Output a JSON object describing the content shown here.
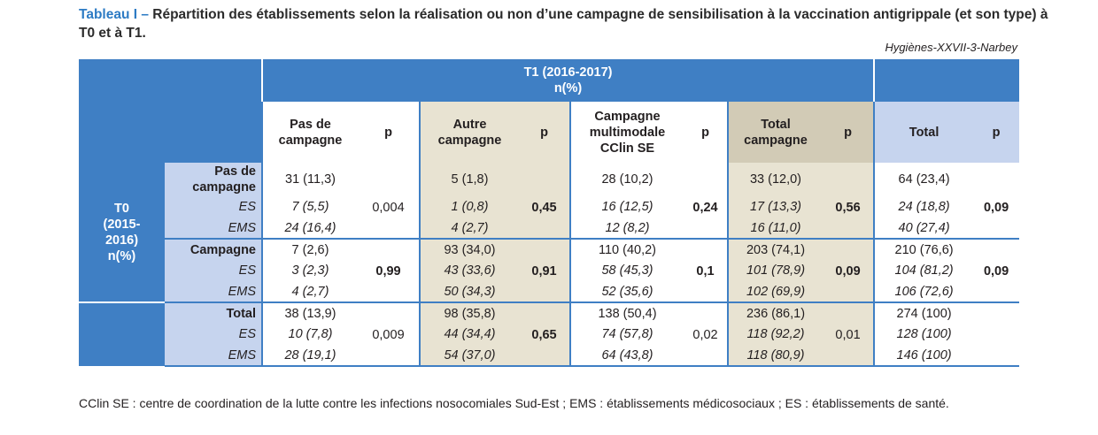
{
  "title": {
    "lead": "Tableau I –",
    "text": " Répartition des établissements selon la réalisation ou non d’une campagne de sensibilisation à la vaccination antigrippale (et son type) à T0 et à T1."
  },
  "source": "Hygiènes-XXVII-3-Narbey",
  "header": {
    "t1_line1": "T1 (2016-2017)",
    "t1_line2": "n(%)",
    "t0_lines": [
      "T0",
      "(2015-",
      "2016)",
      "n(%)"
    ],
    "columns": [
      {
        "lines": [
          "Pas de",
          "campagne"
        ]
      },
      {
        "lines": [
          "p"
        ]
      },
      {
        "lines": [
          "Autre",
          "campagne"
        ]
      },
      {
        "lines": [
          "p"
        ]
      },
      {
        "lines": [
          "Campagne",
          "multimodale",
          "CClin SE"
        ]
      },
      {
        "lines": [
          "p"
        ]
      },
      {
        "lines": [
          "Total",
          "campagne"
        ]
      },
      {
        "lines": [
          "p"
        ]
      },
      {
        "lines": [
          "Total"
        ]
      },
      {
        "lines": [
          "p"
        ]
      }
    ]
  },
  "groups": [
    {
      "label_lines": [
        "Pas de",
        "campagne"
      ],
      "es_label": "ES",
      "ems_label": "EMS",
      "main": [
        "31 (11,3)",
        "5 (1,8)",
        "28 (10,2)",
        "33 (12,0)",
        "64 (23,4)"
      ],
      "es": [
        "7 (5,5)",
        "1 (0,8)",
        "16 (12,5)",
        "17 (13,3)",
        "24 (18,8)"
      ],
      "ems": [
        "24 (16,4)",
        "4 (2,7)",
        "12 (8,2)",
        "16 (11,0)",
        "40 (27,4)"
      ],
      "p": [
        "0,004",
        "0,45",
        "0,24",
        "0,56",
        "0,09"
      ]
    },
    {
      "label_lines": [
        "Campagne"
      ],
      "es_label": "ES",
      "ems_label": "EMS",
      "main": [
        "7 (2,6)",
        "93 (34,0)",
        "110 (40,2)",
        "203 (74,1)",
        "210 (76,6)"
      ],
      "es": [
        "3 (2,3)",
        "43 (33,6)",
        "58 (45,3)",
        "101 (78,9)",
        "104 (81,2)"
      ],
      "ems": [
        "4 (2,7)",
        "50 (34,3)",
        "52 (35,6)",
        "102 (69,9)",
        "106 (72,6)"
      ],
      "p": [
        "0,99",
        "0,91",
        "0,1",
        "0,09",
        "0,09"
      ]
    },
    {
      "label_lines": [
        "Total"
      ],
      "es_label": "ES",
      "ems_label": "EMS",
      "main": [
        "38 (13,9)",
        "98 (35,8)",
        "138 (50,4)",
        "236 (86,1)",
        "274 (100)"
      ],
      "es": [
        "10 (7,8)",
        "44 (34,4)",
        "74 (57,8)",
        "118 (92,2)",
        "128 (100)"
      ],
      "ems": [
        "28 (19,1)",
        "54 (37,0)",
        "64 (43,8)",
        "118 (80,9)",
        "146 (100)"
      ],
      "p": [
        "0,009",
        "0,65",
        "0,02",
        "0,01",
        ""
      ]
    }
  ],
  "footnote": "CClin SE : centre de coordination de la lutte contre les infections nosocomiales Sud-Est ; EMS : établissements médicosociaux ; ES : établissements de santé."
}
